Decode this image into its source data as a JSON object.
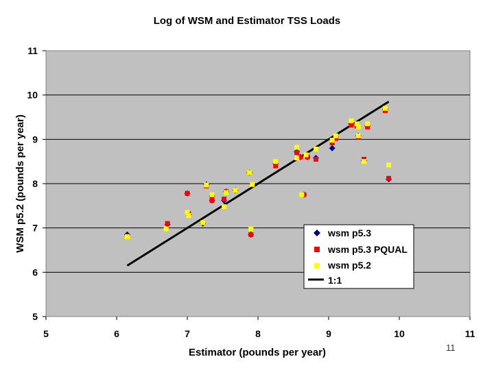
{
  "slide_number": "11",
  "chart_data": {
    "type": "scatter",
    "title": "Log of WSM and Estimator TSS Loads",
    "xlabel": "Estimator (pounds per year)",
    "ylabel": "WSM p5.2 (pounds per year)",
    "xlim": [
      5,
      11
    ],
    "ylim": [
      5,
      11
    ],
    "xticks": [
      5,
      6,
      7,
      8,
      9,
      10,
      11
    ],
    "yticks": [
      5,
      6,
      7,
      8,
      9,
      10,
      11
    ],
    "grid": "horizontal",
    "legend_position": "bottom-right",
    "plot_background": "#c0c0c0",
    "series": [
      {
        "name": "wsm p5.3",
        "marker": "diamond",
        "color": "#000080",
        "points": [
          [
            6.15,
            6.85
          ],
          [
            6.72,
            7.08
          ],
          [
            7.0,
            7.78
          ],
          [
            7.02,
            7.3
          ],
          [
            7.22,
            7.1
          ],
          [
            7.27,
            7.98
          ],
          [
            7.35,
            7.62
          ],
          [
            7.35,
            7.72
          ],
          [
            7.52,
            7.62
          ],
          [
            7.55,
            7.82
          ],
          [
            7.68,
            7.85
          ],
          [
            7.88,
            8.25
          ],
          [
            7.9,
            6.85
          ],
          [
            8.25,
            8.45
          ],
          [
            8.55,
            8.72
          ],
          [
            8.6,
            8.6
          ],
          [
            8.65,
            7.75
          ],
          [
            8.7,
            8.6
          ],
          [
            8.82,
            8.58
          ],
          [
            9.05,
            8.8
          ],
          [
            9.1,
            9.05
          ],
          [
            9.32,
            9.35
          ],
          [
            9.4,
            9.3
          ],
          [
            9.42,
            9.08
          ],
          [
            9.5,
            8.52
          ],
          [
            9.55,
            9.3
          ],
          [
            9.8,
            9.68
          ],
          [
            9.85,
            8.1
          ]
        ]
      },
      {
        "name": "wsm p5.3 PQUAL",
        "marker": "square",
        "color": "#ff0000",
        "points": [
          [
            6.15,
            6.82
          ],
          [
            6.72,
            7.1
          ],
          [
            7.0,
            7.78
          ],
          [
            7.02,
            7.32
          ],
          [
            7.22,
            7.12
          ],
          [
            7.27,
            7.95
          ],
          [
            7.35,
            7.62
          ],
          [
            7.35,
            7.72
          ],
          [
            7.52,
            7.65
          ],
          [
            7.55,
            7.82
          ],
          [
            7.68,
            7.85
          ],
          [
            7.88,
            8.25
          ],
          [
            7.9,
            6.85
          ],
          [
            8.25,
            8.4
          ],
          [
            8.55,
            8.7
          ],
          [
            8.6,
            8.6
          ],
          [
            8.65,
            7.75
          ],
          [
            8.7,
            8.6
          ],
          [
            8.82,
            8.55
          ],
          [
            9.05,
            8.92
          ],
          [
            9.1,
            9.02
          ],
          [
            9.32,
            9.32
          ],
          [
            9.4,
            9.3
          ],
          [
            9.42,
            9.05
          ],
          [
            9.5,
            8.55
          ],
          [
            9.55,
            9.28
          ],
          [
            9.8,
            9.65
          ],
          [
            9.85,
            8.12
          ]
        ]
      },
      {
        "name": "wsm p5.2",
        "marker": "square",
        "color": "#ffff00",
        "points": [
          [
            6.15,
            6.8
          ],
          [
            6.7,
            6.98
          ],
          [
            7.0,
            7.35
          ],
          [
            7.02,
            7.28
          ],
          [
            7.22,
            7.12
          ],
          [
            7.27,
            7.97
          ],
          [
            7.35,
            7.75
          ],
          [
            7.52,
            7.48
          ],
          [
            7.55,
            7.8
          ],
          [
            7.68,
            7.85
          ],
          [
            7.9,
            6.98
          ],
          [
            7.92,
            7.98
          ],
          [
            7.88,
            8.25
          ],
          [
            8.25,
            8.5
          ],
          [
            8.55,
            8.82
          ],
          [
            8.55,
            8.58
          ],
          [
            8.62,
            7.75
          ],
          [
            8.68,
            8.65
          ],
          [
            8.82,
            8.78
          ],
          [
            9.05,
            8.98
          ],
          [
            9.1,
            9.08
          ],
          [
            9.32,
            9.42
          ],
          [
            9.4,
            9.35
          ],
          [
            9.42,
            9.28
          ],
          [
            9.42,
            9.08
          ],
          [
            9.5,
            8.5
          ],
          [
            9.55,
            9.35
          ],
          [
            9.8,
            9.7
          ],
          [
            9.85,
            8.42
          ]
        ]
      }
    ],
    "line": {
      "name": "1:1",
      "color": "#000000",
      "points": [
        [
          6.15,
          6.15
        ],
        [
          9.85,
          9.85
        ]
      ]
    }
  }
}
